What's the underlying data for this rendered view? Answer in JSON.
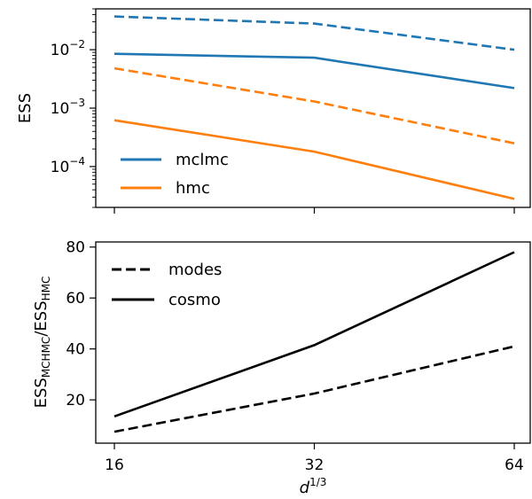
{
  "chart_data": [
    {
      "type": "line",
      "x": [
        16,
        32,
        64
      ],
      "xscale": "log2",
      "yscale": "log",
      "ylabel": "ESS",
      "ylim": [
        2e-05,
        0.05
      ],
      "yticks": [
        {
          "value": 0.01,
          "base": "10",
          "exp": "−2"
        },
        {
          "value": 0.001,
          "base": "10",
          "exp": "−3"
        },
        {
          "value": 0.0001,
          "base": "10",
          "exp": "−4"
        }
      ],
      "series": [
        {
          "name": "mclmc",
          "style": "dashed",
          "color": "#1f77b4",
          "values": [
            0.037,
            0.028,
            0.01
          ]
        },
        {
          "name": "mclmc",
          "style": "solid",
          "color": "#1f77b4",
          "values": [
            0.0085,
            0.0073,
            0.0022
          ]
        },
        {
          "name": "hmc",
          "style": "dashed",
          "color": "#ff7f0e",
          "values": [
            0.0048,
            0.0013,
            0.00025
          ]
        },
        {
          "name": "hmc",
          "style": "solid",
          "color": "#ff7f0e",
          "values": [
            0.00062,
            0.00018,
            2.8e-05
          ]
        }
      ],
      "legend": {
        "placement": "lower-left",
        "entries": [
          {
            "label": "mclmc",
            "color": "#1f77b4"
          },
          {
            "label": "hmc",
            "color": "#ff7f0e"
          }
        ]
      }
    },
    {
      "type": "line",
      "x": [
        16,
        32,
        64
      ],
      "xscale": "log2",
      "xlabel": {
        "base": "d",
        "sup": "1/3"
      },
      "xticks": [
        "16",
        "32",
        "64"
      ],
      "ylabel": {
        "main": "ESS",
        "sub1": "MCHMC",
        "slash": "/",
        "main2": "ESS",
        "sub2": "HMC"
      },
      "ylim": [
        3,
        82
      ],
      "yticks": [
        20,
        40,
        60,
        80
      ],
      "series": [
        {
          "name": "modes",
          "style": "dashed",
          "color": "#000000",
          "values": [
            7.5,
            22.5,
            41
          ]
        },
        {
          "name": "cosmo",
          "style": "solid",
          "color": "#000000",
          "values": [
            13.5,
            41.5,
            78
          ]
        }
      ],
      "legend": {
        "placement": "upper-left",
        "entries": [
          {
            "label": "modes",
            "style": "dashed"
          },
          {
            "label": "cosmo",
            "style": "solid"
          }
        ]
      }
    }
  ]
}
